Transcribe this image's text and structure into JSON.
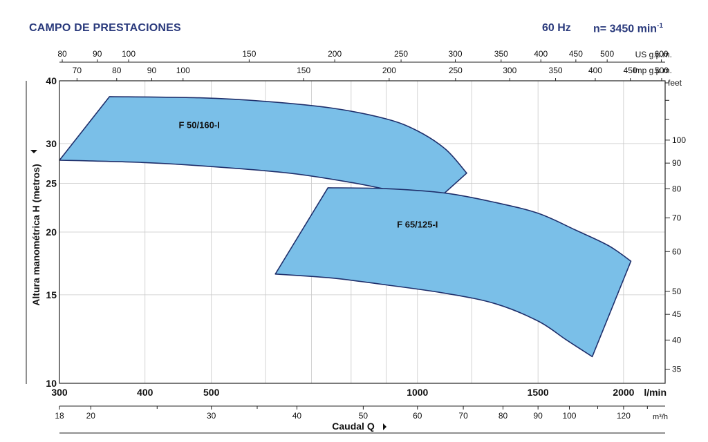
{
  "header": {
    "title": "CAMPO DE PRESTACIONES",
    "frequency": "60 Hz",
    "speed_label": "n= 3450 min",
    "speed_exp": "-1"
  },
  "chart_data": {
    "type": "area",
    "title": "CAMPO DE PRESTACIONES",
    "ylabel": "Altura manométrica H (metros)",
    "xlabel": "Caudal Q",
    "ylim": [
      10,
      40
    ],
    "xlim_lmin": [
      300,
      2300
    ],
    "y_scale": "log",
    "x_scale": "log",
    "colors": {
      "fill": "#7abfe8",
      "stroke": "#1f2f6b",
      "grid": "#c8c8c8",
      "title": "#2a3a7c"
    },
    "y_ticks": [
      {
        "v": 40,
        "label": "40"
      },
      {
        "v": 30,
        "label": "30"
      },
      {
        "v": 25,
        "label": "25"
      },
      {
        "v": 20,
        "label": "20"
      },
      {
        "v": 15,
        "label": "15"
      },
      {
        "v": 10,
        "label": "10"
      }
    ],
    "feet_axis": {
      "unit": "feet",
      "ticks": [
        {
          "v": 100,
          "label": "100"
        },
        {
          "v": 90,
          "label": "90"
        },
        {
          "v": 80,
          "label": "80"
        },
        {
          "v": 70,
          "label": "70"
        },
        {
          "v": 60,
          "label": "60"
        },
        {
          "v": 50,
          "label": "50"
        },
        {
          "v": 45,
          "label": "45"
        },
        {
          "v": 40,
          "label": "40"
        },
        {
          "v": 35,
          "label": "35"
        }
      ],
      "minor": [
        130,
        120,
        110
      ]
    },
    "lmin_axis": {
      "unit": "l/min",
      "ticks": [
        {
          "v": 300,
          "label": "300"
        },
        {
          "v": 400,
          "label": "400"
        },
        {
          "v": 500,
          "label": "500"
        },
        {
          "v": 1000,
          "label": "1000"
        },
        {
          "v": 1500,
          "label": "1500"
        },
        {
          "v": 2000,
          "label": "2000"
        }
      ],
      "grid": [
        600,
        700,
        800,
        900,
        1200
      ]
    },
    "m3h_axis": {
      "unit": "m³/h",
      "ticks": [
        {
          "v": 18,
          "label": "18"
        },
        {
          "v": 20,
          "label": "20"
        },
        {
          "v": 30,
          "label": "30"
        },
        {
          "v": 40,
          "label": "40"
        },
        {
          "v": 50,
          "label": "50"
        },
        {
          "v": 60,
          "label": "60"
        },
        {
          "v": 70,
          "label": "70"
        },
        {
          "v": 80,
          "label": "80"
        },
        {
          "v": 90,
          "label": "90"
        },
        {
          "v": 100,
          "label": "100"
        },
        {
          "v": 120,
          "label": "120"
        }
      ],
      "minor": [
        25,
        35,
        110,
        130
      ]
    },
    "usgpm_axis": {
      "unit": "US g.p.m.",
      "ticks": [
        {
          "v": 80,
          "label": "80"
        },
        {
          "v": 90,
          "label": "90"
        },
        {
          "v": 100,
          "label": "100"
        },
        {
          "v": 150,
          "label": "150"
        },
        {
          "v": 200,
          "label": "200"
        },
        {
          "v": 250,
          "label": "250"
        },
        {
          "v": 300,
          "label": "300"
        },
        {
          "v": 350,
          "label": "350"
        },
        {
          "v": 400,
          "label": "400"
        },
        {
          "v": 450,
          "label": "450"
        },
        {
          "v": 500,
          "label": "500"
        },
        {
          "v": 600,
          "label": "600"
        }
      ]
    },
    "impgpm_axis": {
      "unit": "Imp g.p.m.",
      "ticks": [
        {
          "v": 70,
          "label": "70"
        },
        {
          "v": 80,
          "label": "80"
        },
        {
          "v": 90,
          "label": "90"
        },
        {
          "v": 100,
          "label": "100"
        },
        {
          "v": 150,
          "label": "150"
        },
        {
          "v": 200,
          "label": "200"
        },
        {
          "v": 250,
          "label": "250"
        },
        {
          "v": 300,
          "label": "300"
        },
        {
          "v": 350,
          "label": "350"
        },
        {
          "v": 400,
          "label": "400"
        },
        {
          "v": 450,
          "label": "450"
        },
        {
          "v": 500,
          "label": "500"
        }
      ]
    },
    "series": [
      {
        "name": "F 50/160-I",
        "label_at": [
          480,
          32.2
        ],
        "upper": [
          [
            355,
            37.2
          ],
          [
            480,
            37.0
          ],
          [
            600,
            36.4
          ],
          [
            750,
            35.3
          ],
          [
            900,
            33.6
          ],
          [
            1000,
            31.8
          ],
          [
            1100,
            29.2
          ],
          [
            1180,
            26.2
          ]
        ],
        "right": [
          [
            1180,
            26.2
          ],
          [
            1080,
            23.5
          ]
        ],
        "lower": [
          [
            1080,
            23.5
          ],
          [
            950,
            24.0
          ],
          [
            800,
            25.1
          ],
          [
            650,
            26.2
          ],
          [
            500,
            27.0
          ],
          [
            400,
            27.5
          ],
          [
            300,
            27.8
          ]
        ],
        "left": [
          [
            300,
            27.8
          ],
          [
            355,
            37.2
          ]
        ]
      },
      {
        "name": "F 65/125-I",
        "label_at": [
          1000,
          20.4
        ],
        "upper": [
          [
            740,
            24.5
          ],
          [
            900,
            24.4
          ],
          [
            1100,
            23.9
          ],
          [
            1300,
            22.9
          ],
          [
            1500,
            21.8
          ],
          [
            1700,
            20.2
          ],
          [
            1900,
            18.8
          ],
          [
            2050,
            17.5
          ]
        ],
        "right": [
          [
            2050,
            17.5
          ],
          [
            1800,
            11.3
          ]
        ],
        "lower": [
          [
            1800,
            11.3
          ],
          [
            1650,
            12.2
          ],
          [
            1500,
            13.3
          ],
          [
            1300,
            14.4
          ],
          [
            1100,
            15.1
          ],
          [
            900,
            15.7
          ],
          [
            750,
            16.2
          ],
          [
            620,
            16.5
          ]
        ],
        "left": [
          [
            620,
            16.5
          ],
          [
            740,
            24.5
          ]
        ]
      }
    ]
  }
}
